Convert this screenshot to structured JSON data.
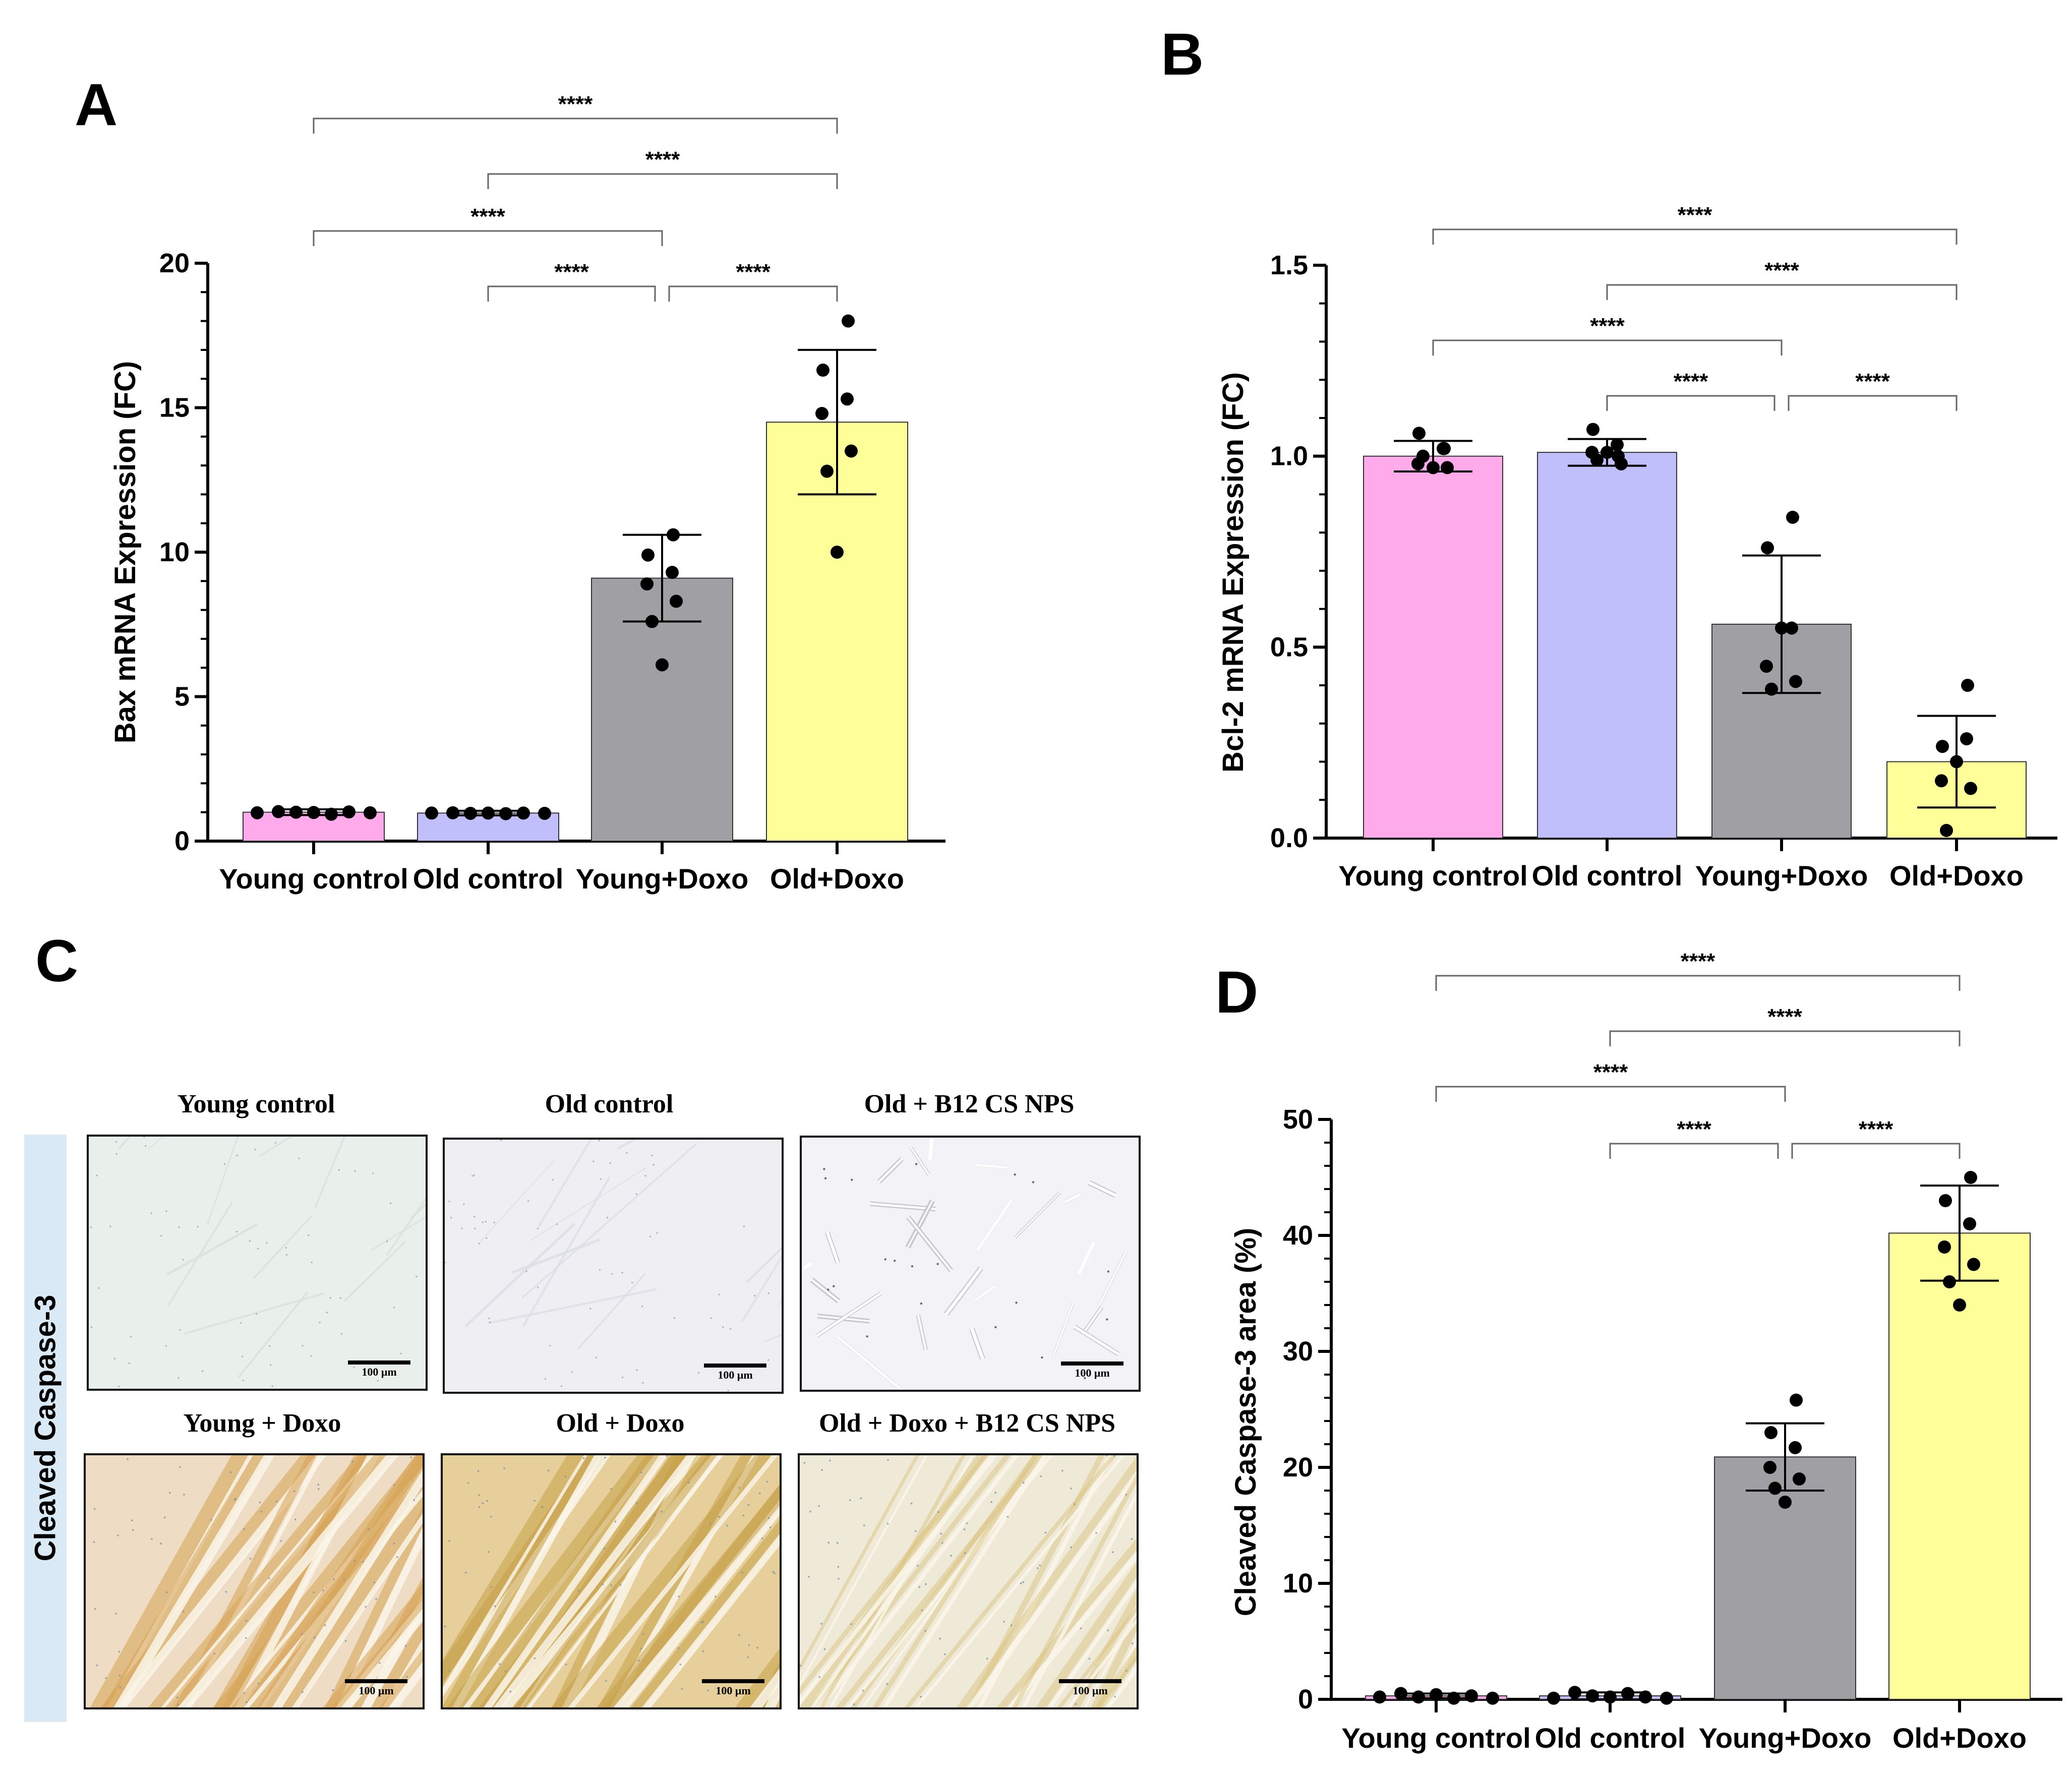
{
  "panels": {
    "A": "A",
    "B": "B",
    "C": "C",
    "D": "D"
  },
  "chart_data": [
    {
      "id": "A",
      "type": "bar",
      "title": "",
      "xlabel": "",
      "ylabel": "Bax mRNA Expression (FC)",
      "ylim": [
        0,
        20
      ],
      "yticks": [
        0,
        5,
        10,
        15,
        20
      ],
      "categories": [
        "Young control",
        "Old control",
        "Young+Doxo",
        "Old+Doxo"
      ],
      "values": [
        1.0,
        0.97,
        9.1,
        14.5
      ],
      "error": [
        0.1,
        0.08,
        1.5,
        2.5
      ],
      "points": [
        [
          0.98,
          1.02,
          1.0,
          0.99,
          0.93,
          1.01,
          0.98
        ],
        [
          0.97,
          0.98,
          0.96,
          0.97,
          0.95,
          0.97,
          0.96
        ],
        [
          10.6,
          9.9,
          9.3,
          8.9,
          8.3,
          7.6,
          6.1
        ],
        [
          18.0,
          16.3,
          15.3,
          14.8,
          13.5,
          12.8,
          10.0
        ]
      ],
      "colors": [
        "#ffaaeb",
        "#c0bffc",
        "#a0a0a4",
        "#ffff99"
      ],
      "significance": [
        {
          "from": 0,
          "to": 3,
          "label": "****"
        },
        {
          "from": 1,
          "to": 3,
          "label": "****"
        },
        {
          "from": 0,
          "to": 2,
          "label": "****"
        },
        {
          "from": 1,
          "to": 2,
          "label": "****"
        },
        {
          "from": 2,
          "to": 3,
          "label": "****"
        }
      ]
    },
    {
      "id": "B",
      "type": "bar",
      "title": "",
      "xlabel": "",
      "ylabel": "Bcl-2 mRNA Expression (FC)",
      "ylim": [
        0,
        1.5
      ],
      "yticks": [
        0.0,
        0.5,
        1.0,
        1.5
      ],
      "ytick_labels": [
        "0.0",
        "0.5",
        "1.0",
        "1.5"
      ],
      "categories": [
        "Young control",
        "Old control",
        "Young+Doxo",
        "Old+Doxo"
      ],
      "values": [
        1.0,
        1.01,
        0.56,
        0.2
      ],
      "error": [
        0.04,
        0.035,
        0.18,
        0.12
      ],
      "points": [
        [
          1.02,
          1.06,
          1.02,
          0.98,
          0.97,
          1.0,
          0.97
        ],
        [
          1.0,
          1.07,
          1.03,
          1.01,
          0.98,
          0.99,
          1.01
        ],
        [
          0.84,
          0.76,
          0.55,
          0.45,
          0.41,
          0.39,
          0.55
        ],
        [
          0.4,
          0.24,
          0.26,
          0.15,
          0.13,
          0.02,
          0.2
        ]
      ],
      "colors": [
        "#ffaaeb",
        "#c0bffc",
        "#a0a0a4",
        "#ffff99"
      ],
      "significance": [
        {
          "from": 0,
          "to": 3,
          "label": "****"
        },
        {
          "from": 1,
          "to": 3,
          "label": "****"
        },
        {
          "from": 0,
          "to": 2,
          "label": "****"
        },
        {
          "from": 1,
          "to": 2,
          "label": "****"
        },
        {
          "from": 2,
          "to": 3,
          "label": "****"
        }
      ]
    },
    {
      "id": "D",
      "type": "bar",
      "title": "",
      "xlabel": "",
      "ylabel": "Cleaved Caspase-3  area (%)",
      "ylim": [
        0,
        50
      ],
      "yticks": [
        0,
        10,
        20,
        30,
        40,
        50
      ],
      "categories": [
        "Young control",
        "Old control",
        "Young+Doxo",
        "Old+Doxo"
      ],
      "values": [
        0.3,
        0.3,
        20.9,
        40.2
      ],
      "error": [
        0.2,
        0.3,
        2.9,
        4.1
      ],
      "points": [
        [
          0.2,
          0.5,
          0.2,
          0.4,
          0.1,
          0.3,
          0.1
        ],
        [
          0.1,
          0.6,
          0.3,
          0.2,
          0.5,
          0.2,
          0.1
        ],
        [
          25.8,
          23.0,
          21.7,
          20.0,
          19.0,
          18.2,
          17.0
        ],
        [
          45.0,
          43.0,
          41.0,
          39.0,
          37.5,
          36.0,
          34.0
        ]
      ],
      "colors": [
        "#ffaaeb",
        "#c0bffc",
        "#a0a0a4",
        "#ffff99"
      ],
      "significance": [
        {
          "from": 0,
          "to": 3,
          "label": "****"
        },
        {
          "from": 1,
          "to": 3,
          "label": "****"
        },
        {
          "from": 0,
          "to": 2,
          "label": "****"
        },
        {
          "from": 1,
          "to": 2,
          "label": "****"
        },
        {
          "from": 2,
          "to": 3,
          "label": "****"
        }
      ]
    }
  ],
  "panel_c": {
    "side_label": "Cleaved Caspase-3",
    "scale_label": "100 μm",
    "images": [
      {
        "title": "Young control",
        "stain": "faint",
        "base": "#e9efea",
        "accent": "#d8e0d8"
      },
      {
        "title": "Old control",
        "stain": "faint",
        "base": "#eeeef3",
        "accent": "#dcdce6"
      },
      {
        "title": "Old + B12 CS NPS",
        "stain": "cells",
        "base": "#f3f3f7",
        "accent": "#d6d6de"
      },
      {
        "title": "Young + Doxo",
        "stain": "strong",
        "base": "#efdcc4",
        "accent": "#d7a455"
      },
      {
        "title": "Old + Doxo",
        "stain": "strong",
        "base": "#e6cf9a",
        "accent": "#c8a24a"
      },
      {
        "title": "Old + Doxo + B12 CS NPS",
        "stain": "mild",
        "base": "#efe9d8",
        "accent": "#d9c27a"
      }
    ]
  }
}
